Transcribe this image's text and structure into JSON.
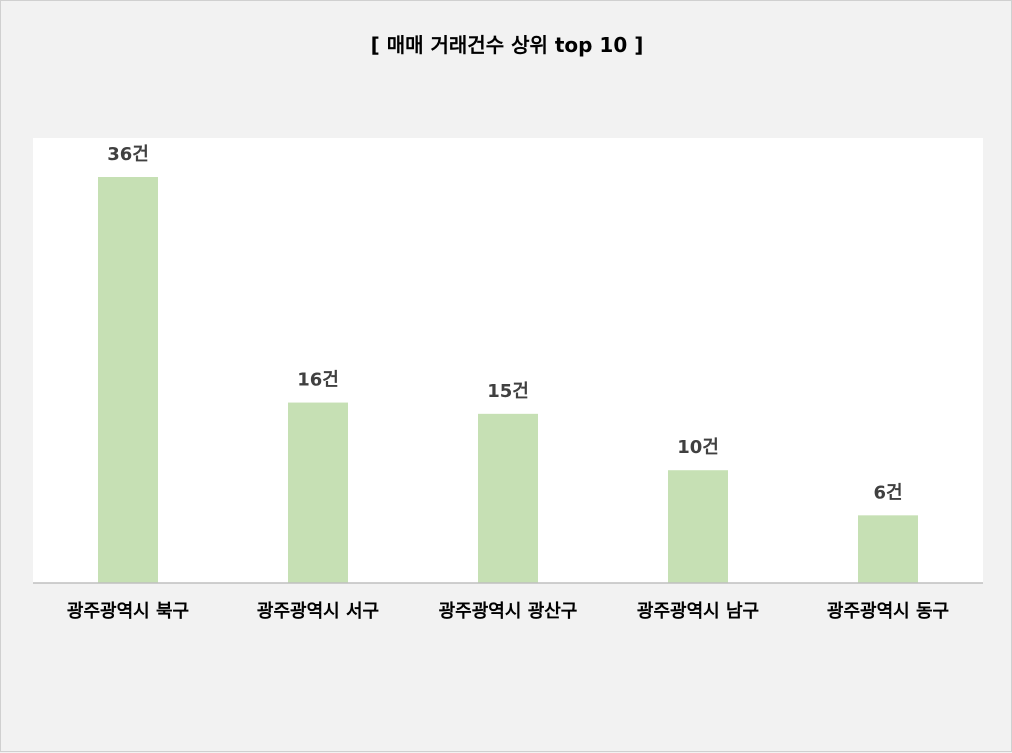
{
  "chart_data": {
    "type": "bar",
    "title": "[ 매매 거래건수 상위 top 10 ]",
    "categories": [
      "광주광역시 북구",
      "광주광역시 서구",
      "광주광역시 광산구",
      "광주광역시 남구",
      "광주광역시 동구"
    ],
    "values": [
      36,
      16,
      15,
      10,
      6
    ],
    "value_suffix": "건",
    "xlabel": "",
    "ylabel": "",
    "ylim": [
      0,
      40
    ],
    "grid": false,
    "legend": "none",
    "colors": {
      "bar": "#c6e0b4",
      "plot_background": "#ffffff",
      "chart_background": "#f2f2f2",
      "axis": "#bfbfbf"
    }
  }
}
